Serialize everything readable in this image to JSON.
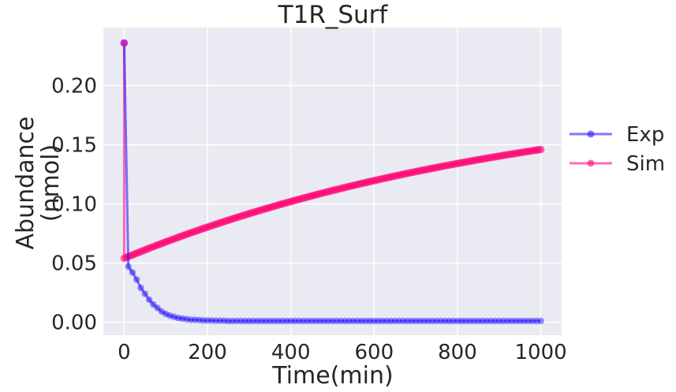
{
  "chart_data": {
    "type": "line",
    "title": "T1R_Surf",
    "xlabel": "Time(min)",
    "ylabel_lines": [
      "Abundance",
      "(nmol)"
    ],
    "xlim": [
      -50,
      1050
    ],
    "ylim": [
      -0.011,
      0.249
    ],
    "xticks": [
      0,
      200,
      400,
      600,
      800,
      1000
    ],
    "xtick_labels": [
      "0",
      "200",
      "400",
      "600",
      "800",
      "1000"
    ],
    "yticks": [
      0.0,
      0.05,
      0.1,
      0.15,
      0.2
    ],
    "ytick_labels": [
      "0.00",
      "0.05",
      "0.10",
      "0.15",
      "0.20"
    ],
    "grid": true,
    "legend_placement": "right-outside",
    "colors": {
      "background": "#EAEAF2",
      "grid": "#FFFFFF",
      "exp": "#2B1DFF",
      "sim": "#FF0A78",
      "sim_first_marker": "#C71BC2"
    },
    "series": [
      {
        "name": "Exp",
        "x": [
          0,
          10,
          20,
          30,
          40,
          50,
          60,
          70,
          80,
          90,
          100,
          110,
          120,
          130,
          140,
          150,
          160,
          170,
          180,
          190,
          200,
          210,
          220,
          230,
          240,
          250,
          260,
          270,
          280,
          290,
          300,
          310,
          320,
          330,
          340,
          350,
          360,
          370,
          380,
          390,
          400,
          410,
          420,
          430,
          440,
          450,
          460,
          470,
          480,
          490,
          500,
          510,
          520,
          530,
          540,
          550,
          560,
          570,
          580,
          590,
          600,
          610,
          620,
          630,
          640,
          650,
          660,
          670,
          680,
          690,
          700,
          710,
          720,
          730,
          740,
          750,
          760,
          770,
          780,
          790,
          800,
          810,
          820,
          830,
          840,
          850,
          860,
          870,
          880,
          890,
          900,
          910,
          920,
          930,
          940,
          950,
          960,
          970,
          980,
          990,
          1000
        ],
        "y": [
          0.236,
          0.047,
          0.042,
          0.036,
          0.029,
          0.024,
          0.019,
          0.015,
          0.012,
          0.009,
          0.007,
          0.0055,
          0.0045,
          0.0035,
          0.003,
          0.0025,
          0.002,
          0.002,
          0.0018,
          0.0015,
          0.0015,
          0.0014,
          0.0013,
          0.0012,
          0.0012,
          0.001,
          0.001,
          0.001,
          0.001,
          0.001,
          0.001,
          0.001,
          0.001,
          0.001,
          0.001,
          0.001,
          0.001,
          0.001,
          0.001,
          0.001,
          0.001,
          0.001,
          0.001,
          0.001,
          0.001,
          0.001,
          0.001,
          0.001,
          0.001,
          0.001,
          0.001,
          0.001,
          0.001,
          0.001,
          0.001,
          0.001,
          0.001,
          0.001,
          0.001,
          0.001,
          0.001,
          0.001,
          0.001,
          0.001,
          0.001,
          0.001,
          0.001,
          0.001,
          0.001,
          0.001,
          0.001,
          0.001,
          0.001,
          0.001,
          0.001,
          0.001,
          0.001,
          0.001,
          0.001,
          0.001,
          0.001,
          0.001,
          0.001,
          0.001,
          0.001,
          0.001,
          0.001,
          0.001,
          0.001,
          0.001,
          0.001,
          0.001,
          0.001,
          0.001,
          0.001,
          0.001,
          0.001,
          0.001,
          0.001,
          0.001,
          0.001
        ]
      },
      {
        "name": "Sim",
        "first_point": {
          "x": 0,
          "y": 0.236
        },
        "start": {
          "x": 0,
          "y": 0.054
        },
        "end": {
          "x": 1000,
          "y": 0.146
        },
        "curve_tau": 1000,
        "sample_step": 5
      }
    ]
  }
}
